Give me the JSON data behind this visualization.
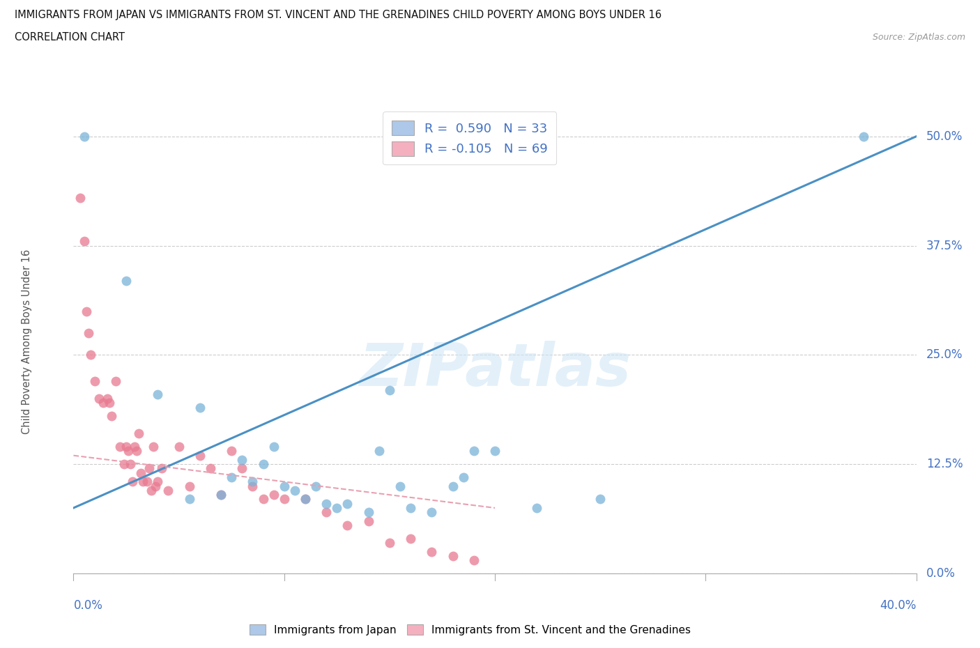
{
  "title_line1": "IMMIGRANTS FROM JAPAN VS IMMIGRANTS FROM ST. VINCENT AND THE GRENADINES CHILD POVERTY AMONG BOYS UNDER 16",
  "title_line2": "CORRELATION CHART",
  "source": "Source: ZipAtlas.com",
  "ylabel": "Child Poverty Among Boys Under 16",
  "ytick_vals": [
    0.0,
    12.5,
    25.0,
    37.5,
    50.0
  ],
  "watermark": "ZIPatlas",
  "japan_legend_color": "#adc8e8",
  "svg_legend_color": "#f5b0c0",
  "japan_scatter_color": "#7ab3d9",
  "svg_scatter_color": "#e87a90",
  "japan_line_color": "#4a90c4",
  "svg_line_color": "#e8a0b0",
  "blue_text_color": "#4472c4",
  "japan_points_x": [
    0.5,
    2.5,
    4.0,
    5.5,
    6.0,
    7.0,
    7.5,
    8.0,
    8.5,
    9.0,
    9.5,
    10.0,
    10.5,
    11.0,
    11.5,
    12.0,
    12.5,
    13.0,
    14.0,
    14.5,
    15.0,
    15.5,
    16.0,
    17.0,
    18.0,
    18.5,
    19.0,
    20.0,
    22.0,
    25.0,
    37.5
  ],
  "japan_points_y": [
    50.0,
    33.5,
    20.5,
    8.5,
    19.0,
    9.0,
    11.0,
    13.0,
    10.5,
    12.5,
    14.5,
    10.0,
    9.5,
    8.5,
    10.0,
    8.0,
    7.5,
    8.0,
    7.0,
    14.0,
    21.0,
    10.0,
    7.5,
    7.0,
    10.0,
    11.0,
    14.0,
    14.0,
    7.5,
    8.5,
    50.0
  ],
  "svg_points_x": [
    0.3,
    0.5,
    0.6,
    0.7,
    0.8,
    1.0,
    1.2,
    1.4,
    1.6,
    1.7,
    1.8,
    2.0,
    2.2,
    2.4,
    2.5,
    2.6,
    2.7,
    2.8,
    2.9,
    3.0,
    3.1,
    3.2,
    3.3,
    3.5,
    3.6,
    3.7,
    3.8,
    3.9,
    4.0,
    4.2,
    4.5,
    5.0,
    5.5,
    6.0,
    6.5,
    7.0,
    7.5,
    8.0,
    8.5,
    9.0,
    9.5,
    10.0,
    11.0,
    12.0,
    13.0,
    14.0,
    15.0,
    16.0,
    17.0,
    18.0,
    19.0
  ],
  "svg_points_y": [
    43.0,
    38.0,
    30.0,
    27.5,
    25.0,
    22.0,
    20.0,
    19.5,
    20.0,
    19.5,
    18.0,
    22.0,
    14.5,
    12.5,
    14.5,
    14.0,
    12.5,
    10.5,
    14.5,
    14.0,
    16.0,
    11.5,
    10.5,
    10.5,
    12.0,
    9.5,
    14.5,
    10.0,
    10.5,
    12.0,
    9.5,
    14.5,
    10.0,
    13.5,
    12.0,
    9.0,
    14.0,
    12.0,
    10.0,
    8.5,
    9.0,
    8.5,
    8.5,
    7.0,
    5.5,
    6.0,
    3.5,
    4.0,
    2.5,
    2.0,
    1.5
  ],
  "japan_line_x0": 0.0,
  "japan_line_y0": 7.5,
  "japan_line_x1": 40.0,
  "japan_line_y1": 50.0,
  "svg_line_x0": 0.0,
  "svg_line_y0": 13.5,
  "svg_line_x1": 20.0,
  "svg_line_y1": 7.5,
  "xmin": 0.0,
  "xmax": 40.0,
  "ymin": 0.0,
  "ymax": 53.0
}
